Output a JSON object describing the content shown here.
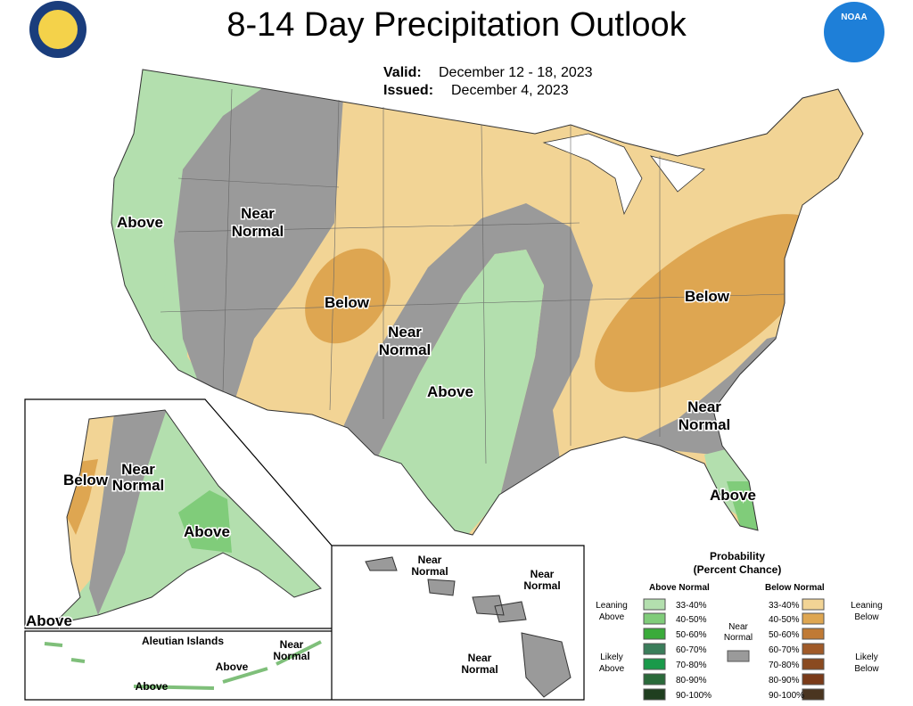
{
  "header": {
    "title": "8-14 Day Precipitation Outlook",
    "valid_label": "Valid:",
    "valid": "December 12 - 18, 2023",
    "issued_label": "Issued:",
    "issued": "December 4, 2023",
    "logo": "NOAA"
  },
  "conus_labels": [
    [
      "Above"
    ],
    [
      "Near",
      "Normal"
    ],
    [
      "Below"
    ],
    [
      "Near",
      "Normal"
    ],
    [
      "Above"
    ],
    [
      "Below"
    ],
    [
      "Near",
      "Normal"
    ],
    [
      "Above"
    ]
  ],
  "alaska_labels": [
    [
      "Below"
    ],
    [
      "Near",
      "Normal"
    ],
    [
      "Above"
    ],
    [
      "Above"
    ]
  ],
  "aleutian": {
    "title": "Aleutian Islands",
    "labels": [
      [
        "Near",
        "Normal"
      ],
      [
        "Above"
      ],
      [
        "Above"
      ]
    ]
  },
  "hawaii_labels": [
    [
      "Near",
      "Normal"
    ],
    [
      "Near",
      "Normal"
    ],
    [
      "Near",
      "Normal"
    ]
  ],
  "legend": {
    "title": "Probability",
    "subtitle": "(Percent Chance)",
    "above_header": "Above Normal",
    "below_header": "Below Normal",
    "near_header": [
      "Near",
      "Normal"
    ],
    "leaning_above": [
      "Leaning",
      "Above"
    ],
    "likely_above": [
      "Likely",
      "Above"
    ],
    "leaning_below": [
      "Leaning",
      "Below"
    ],
    "likely_below": [
      "Likely",
      "Below"
    ],
    "above_ranges": [
      "33-40%",
      "40-50%",
      "50-60%",
      "60-70%",
      "70-80%",
      "80-90%",
      "90-100%"
    ],
    "below_ranges": [
      "33-40%",
      "40-50%",
      "50-60%",
      "60-70%",
      "70-80%",
      "80-90%",
      "90-100%"
    ]
  }
}
